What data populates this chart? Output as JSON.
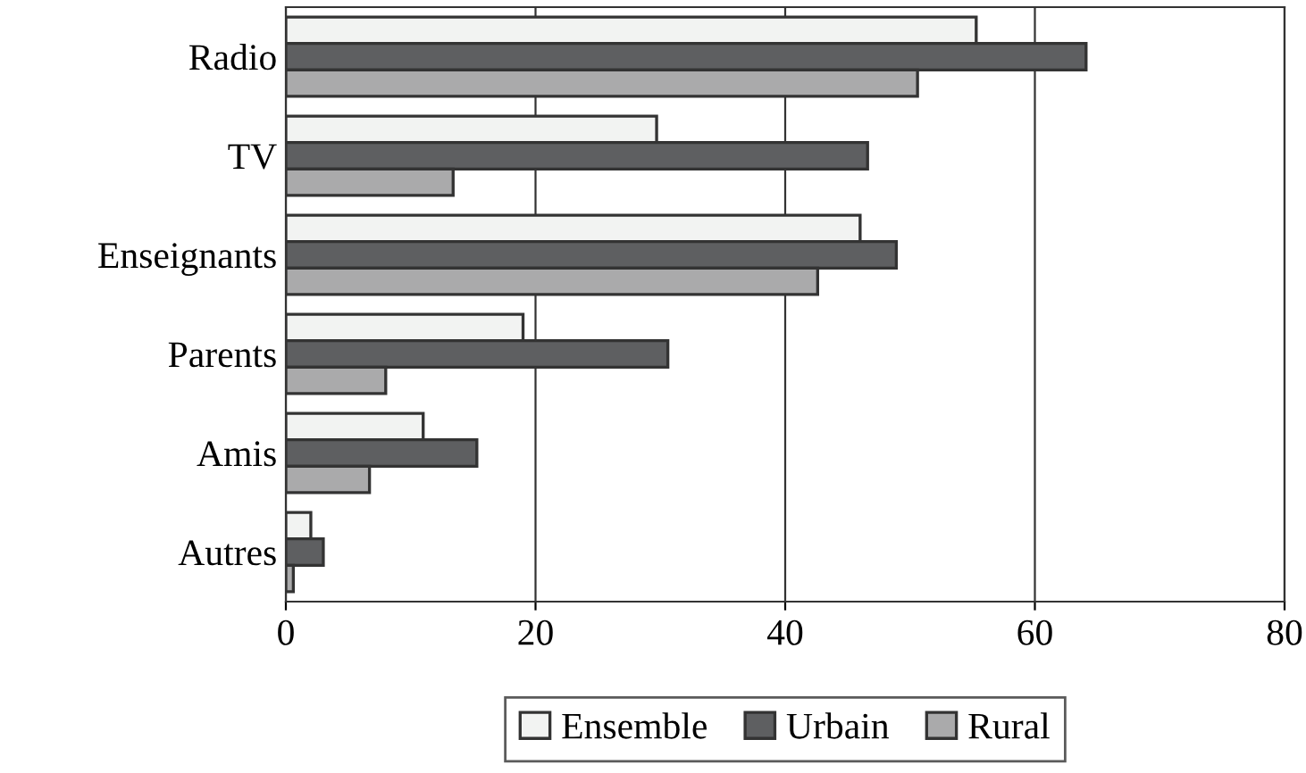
{
  "chart_data": {
    "type": "bar",
    "orientation": "horizontal",
    "categories": [
      "Radio",
      "TV",
      "Enseignants",
      "Parents",
      "Amis",
      "Autres"
    ],
    "series": [
      {
        "name": "Ensemble",
        "color": "#f2f3f2",
        "values": [
          55.3,
          29.7,
          46.0,
          19.0,
          11.0,
          2.0
        ]
      },
      {
        "name": "Urbain",
        "color": "#5e5f61",
        "values": [
          64.1,
          46.6,
          48.9,
          30.6,
          15.3,
          3.0
        ]
      },
      {
        "name": "Rural",
        "color": "#aaaaab",
        "values": [
          50.6,
          13.4,
          42.6,
          8.0,
          6.7,
          0.6
        ]
      }
    ],
    "xlim": [
      0,
      80
    ],
    "xticks": [
      0,
      20,
      40,
      60,
      80
    ],
    "grid": "x",
    "legend": "bottom"
  }
}
